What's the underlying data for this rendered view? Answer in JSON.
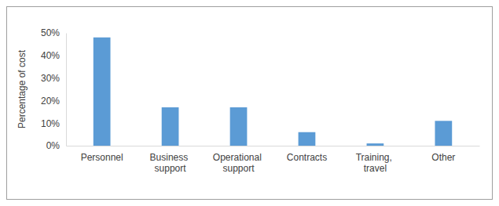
{
  "chart_data": {
    "type": "bar",
    "y_label": "Percentage of cost",
    "categories": [
      "Personnel",
      "Business support",
      "Operational support",
      "Contracts",
      "Training, travel",
      "Other"
    ],
    "values": [
      48,
      17,
      17,
      6,
      1,
      11
    ],
    "color": "#5b9bd5",
    "ylim": [
      0,
      50
    ],
    "yticks": [
      {
        "value": 0,
        "label": "0%"
      },
      {
        "value": 10,
        "label": "10%"
      },
      {
        "value": 20,
        "label": "20%"
      },
      {
        "value": 30,
        "label": "30%"
      },
      {
        "value": 40,
        "label": "40%"
      },
      {
        "value": 50,
        "label": "50%"
      }
    ],
    "grid": false
  }
}
